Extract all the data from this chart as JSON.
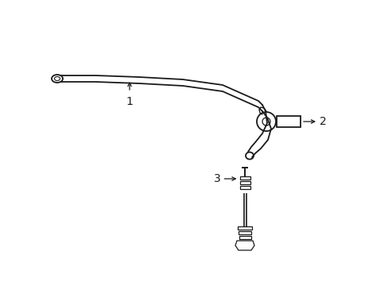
{
  "background_color": "#ffffff",
  "line_color": "#1a1a1a",
  "figsize": [
    4.89,
    3.6
  ],
  "dpi": 100,
  "label1": "1",
  "label2": "2",
  "label3": "3"
}
